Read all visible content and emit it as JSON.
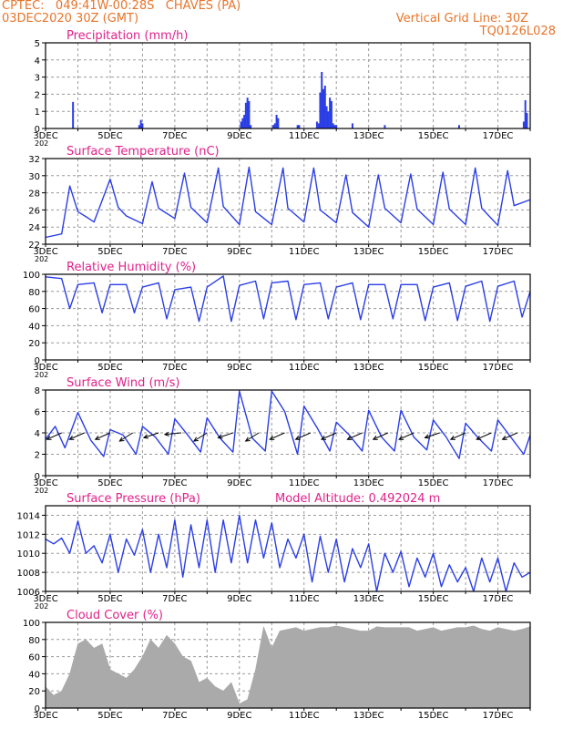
{
  "header": {
    "station_line": "CPTEC:   049:41W-00:28S   CHAVES (PA)",
    "run_line": "03DEC2020 30Z (GMT)",
    "grid_note": "Vertical Grid Line: 30Z",
    "product_code": "TQ0126L028"
  },
  "colors": {
    "header": "#e8742a",
    "title": "#e0218a",
    "line": "#2b3ee6",
    "bar": "#2b3ee6",
    "cloud": "#aaaaaa",
    "grid": "#9a9a9a"
  },
  "x_axis": {
    "days": 15,
    "tick_labels": [
      "3DEC",
      "5DEC",
      "7DEC",
      "9DEC",
      "11DEC",
      "13DEC",
      "15DEC",
      "17DEC"
    ],
    "year_fragment": "202"
  },
  "chart_data": [
    {
      "type": "bar",
      "title": "Precipitation (mm/h)",
      "ylim": [
        0,
        5
      ],
      "yticks": [
        "0",
        "1",
        "2",
        "3",
        "4",
        "5"
      ],
      "x": [
        0.85,
        2.9,
        2.95,
        3.0,
        6.05,
        6.1,
        6.15,
        6.2,
        6.25,
        6.3,
        6.35,
        7.05,
        7.1,
        7.15,
        7.2,
        7.8,
        7.85,
        8.4,
        8.45,
        8.5,
        8.55,
        8.6,
        8.65,
        8.7,
        8.75,
        8.8,
        8.85,
        8.9,
        8.95,
        9.0,
        9.5,
        10.5,
        12.8,
        14.8,
        14.85,
        14.9
      ],
      "values": [
        1.55,
        0.2,
        0.5,
        0.3,
        0.4,
        0.6,
        0.8,
        1.5,
        1.8,
        1.6,
        0.2,
        0.2,
        0.3,
        0.8,
        0.6,
        0.2,
        0.2,
        0.4,
        0.3,
        2.1,
        3.3,
        2.3,
        2.5,
        1.3,
        1.0,
        1.8,
        1.6,
        0.3,
        0.2,
        0.2,
        0.3,
        0.2,
        0.2,
        0.4,
        1.65,
        0.9
      ]
    },
    {
      "type": "line",
      "title": "Surface Temperature (nC)",
      "ylim": [
        22,
        32
      ],
      "yticks": [
        "22",
        "24",
        "26",
        "28",
        "30",
        "32"
      ],
      "series": [
        {
          "x": [
            0.0,
            0.5,
            0.75,
            1.0,
            1.3,
            1.5,
            2.0,
            2.25,
            2.5,
            3.0,
            3.3,
            3.5,
            4.0,
            4.3,
            4.5,
            5.0,
            5.35,
            5.5,
            6.0,
            6.3,
            6.5,
            7.0,
            7.35,
            7.5,
            8.0,
            8.3,
            8.5,
            9.0,
            9.3,
            9.5,
            10.0,
            10.3,
            10.5,
            11.0,
            11.3,
            11.5,
            12.0,
            12.3,
            12.5,
            13.0,
            13.3,
            13.5,
            14.0,
            14.3,
            14.5,
            15.0
          ],
          "values": [
            22.8,
            23.2,
            28.8,
            25.8,
            25.1,
            24.6,
            29.6,
            26.3,
            25.3,
            24.4,
            29.3,
            26.2,
            25.0,
            30.3,
            26.3,
            24.5,
            30.9,
            26.4,
            24.3,
            31.0,
            25.8,
            24.3,
            30.9,
            26.2,
            24.6,
            30.9,
            26.0,
            24.5,
            30.1,
            25.7,
            24.0,
            30.1,
            26.2,
            24.5,
            30.2,
            26.1,
            24.3,
            30.4,
            26.1,
            24.3,
            30.9,
            26.2,
            24.2,
            30.6,
            26.5,
            27.2
          ]
        }
      ]
    },
    {
      "type": "line",
      "title": "Relative Humidity (%)",
      "ylim": [
        0,
        100
      ],
      "yticks": [
        "0",
        "20",
        "40",
        "60",
        "80",
        "100"
      ],
      "series": [
        {
          "x": [
            0.0,
            0.5,
            0.75,
            1.0,
            1.5,
            1.75,
            2.0,
            2.5,
            2.75,
            3.0,
            3.5,
            3.75,
            4.0,
            4.5,
            4.75,
            5.0,
            5.5,
            5.75,
            6.0,
            6.5,
            6.75,
            7.0,
            7.5,
            7.75,
            8.0,
            8.5,
            8.75,
            9.0,
            9.5,
            9.75,
            10.0,
            10.5,
            10.75,
            11.0,
            11.5,
            11.75,
            12.0,
            12.5,
            12.75,
            13.0,
            13.5,
            13.75,
            14.0,
            14.5,
            14.75,
            15.0
          ],
          "values": [
            97,
            95,
            60,
            88,
            90,
            55,
            88,
            88,
            55,
            85,
            90,
            48,
            82,
            85,
            45,
            85,
            98,
            45,
            87,
            92,
            48,
            90,
            92,
            47,
            88,
            90,
            48,
            85,
            90,
            47,
            88,
            88,
            48,
            88,
            88,
            46,
            85,
            90,
            46,
            86,
            92,
            45,
            86,
            92,
            50,
            80
          ]
        }
      ]
    },
    {
      "type": "line",
      "title": "Surface Wind (m/s)",
      "ylim": [
        0,
        8
      ],
      "yticks": [
        "0",
        "2",
        "4",
        "6",
        "8"
      ],
      "series": [
        {
          "x": [
            0.0,
            0.3,
            0.6,
            1.0,
            1.4,
            1.8,
            2.0,
            2.4,
            2.8,
            3.0,
            3.4,
            3.8,
            4.0,
            4.4,
            4.8,
            5.0,
            5.4,
            5.8,
            6.0,
            6.4,
            6.8,
            7.0,
            7.4,
            7.8,
            8.0,
            8.4,
            8.8,
            9.0,
            9.4,
            9.8,
            10.0,
            10.4,
            10.8,
            11.0,
            11.4,
            11.8,
            12.0,
            12.4,
            12.8,
            13.0,
            13.4,
            13.8,
            14.0,
            14.4,
            14.8,
            15.0
          ],
          "values": [
            3.4,
            4.6,
            2.6,
            5.9,
            3.3,
            1.8,
            4.3,
            3.8,
            2.0,
            4.6,
            3.6,
            2.0,
            5.3,
            3.8,
            2.2,
            5.4,
            3.5,
            2.2,
            7.9,
            3.5,
            2.3,
            7.9,
            6.0,
            2.0,
            6.5,
            4.5,
            2.3,
            5.0,
            3.8,
            2.3,
            6.1,
            3.6,
            2.3,
            6.1,
            3.6,
            2.4,
            5.2,
            3.6,
            1.6,
            4.9,
            3.5,
            2.3,
            5.2,
            3.6,
            2.0,
            3.8
          ]
        }
      ],
      "arrows": [
        {
          "x": 0.5,
          "u": -0.9,
          "v": -0.4
        },
        {
          "x": 1.2,
          "u": -0.9,
          "v": -0.4
        },
        {
          "x": 2.0,
          "u": -0.9,
          "v": -0.4
        },
        {
          "x": 2.7,
          "u": -0.8,
          "v": -0.5
        },
        {
          "x": 3.5,
          "u": -0.9,
          "v": -0.3
        },
        {
          "x": 4.2,
          "u": -1.0,
          "v": -0.1
        },
        {
          "x": 5.0,
          "u": -0.8,
          "v": -0.5
        },
        {
          "x": 5.8,
          "u": -0.9,
          "v": -0.3
        },
        {
          "x": 6.6,
          "u": -0.8,
          "v": -0.5
        },
        {
          "x": 7.4,
          "u": -0.9,
          "v": -0.4
        },
        {
          "x": 8.2,
          "u": -0.9,
          "v": -0.4
        },
        {
          "x": 9.0,
          "u": -0.9,
          "v": -0.4
        },
        {
          "x": 9.8,
          "u": -0.9,
          "v": -0.4
        },
        {
          "x": 10.6,
          "u": -0.9,
          "v": -0.4
        },
        {
          "x": 11.4,
          "u": -0.9,
          "v": -0.4
        },
        {
          "x": 12.2,
          "u": -0.9,
          "v": -0.3
        },
        {
          "x": 13.0,
          "u": -0.9,
          "v": -0.4
        },
        {
          "x": 13.8,
          "u": -0.9,
          "v": -0.4
        },
        {
          "x": 14.6,
          "u": -0.9,
          "v": -0.4
        }
      ]
    },
    {
      "type": "line",
      "title": "Surface Pressure (hPa)",
      "annotation": "Model Altitude: 0.492024 m",
      "ylim": [
        1006,
        1015
      ],
      "yticks": [
        "1006",
        "1008",
        "1010",
        "1012",
        "1014"
      ],
      "series": [
        {
          "x": [
            0.0,
            0.25,
            0.5,
            0.75,
            1.0,
            1.25,
            1.5,
            1.75,
            2.0,
            2.25,
            2.5,
            2.75,
            3.0,
            3.25,
            3.5,
            3.75,
            4.0,
            4.25,
            4.5,
            4.75,
            5.0,
            5.25,
            5.5,
            5.75,
            6.0,
            6.25,
            6.5,
            6.75,
            7.0,
            7.25,
            7.5,
            7.75,
            8.0,
            8.25,
            8.5,
            8.75,
            9.0,
            9.25,
            9.5,
            9.75,
            10.0,
            10.25,
            10.5,
            10.75,
            11.0,
            11.25,
            11.5,
            11.75,
            12.0,
            12.25,
            12.5,
            12.75,
            13.0,
            13.25,
            13.5,
            13.75,
            14.0,
            14.25,
            14.5,
            14.75,
            15.0
          ],
          "values": [
            1011.5,
            1011.0,
            1011.6,
            1010.0,
            1013.4,
            1010.0,
            1010.8,
            1009.0,
            1012.0,
            1008.0,
            1011.5,
            1009.8,
            1012.5,
            1008.0,
            1012.0,
            1008.5,
            1013.5,
            1007.5,
            1013.0,
            1008.5,
            1013.5,
            1008.0,
            1013.5,
            1009.0,
            1014.0,
            1009.0,
            1013.5,
            1009.5,
            1013.2,
            1008.5,
            1011.5,
            1009.5,
            1012.0,
            1007.0,
            1011.8,
            1008.0,
            1011.5,
            1007.0,
            1010.5,
            1008.5,
            1011.0,
            1006.0,
            1010.0,
            1008.0,
            1010.2,
            1006.5,
            1009.5,
            1007.5,
            1010.0,
            1006.5,
            1008.8,
            1007.0,
            1008.5,
            1006.0,
            1009.5,
            1007.0,
            1009.5,
            1006.0,
            1009.0,
            1007.5,
            1008.0
          ]
        }
      ]
    },
    {
      "type": "area",
      "title": "Cloud Cover (%)",
      "ylim": [
        0,
        100
      ],
      "yticks": [
        "0",
        "20",
        "40",
        "60",
        "80",
        "100"
      ],
      "x": [
        0.0,
        0.25,
        0.5,
        0.75,
        1.0,
        1.25,
        1.5,
        1.75,
        2.0,
        2.25,
        2.5,
        2.75,
        3.0,
        3.25,
        3.5,
        3.75,
        4.0,
        4.25,
        4.5,
        4.75,
        5.0,
        5.25,
        5.5,
        5.75,
        6.0,
        6.25,
        6.5,
        6.75,
        7.0,
        7.25,
        7.5,
        7.75,
        8.0,
        8.25,
        8.5,
        8.75,
        9.0,
        9.25,
        9.5,
        9.75,
        10.0,
        10.25,
        10.5,
        10.75,
        11.0,
        11.25,
        11.5,
        11.75,
        12.0,
        12.25,
        12.5,
        12.75,
        13.0,
        13.25,
        13.5,
        13.75,
        14.0,
        14.25,
        14.5,
        14.75,
        15.0
      ],
      "values": [
        25,
        15,
        20,
        40,
        75,
        80,
        70,
        75,
        45,
        40,
        35,
        45,
        60,
        80,
        70,
        85,
        75,
        60,
        55,
        30,
        35,
        25,
        20,
        30,
        5,
        10,
        45,
        95,
        70,
        90,
        92,
        94,
        90,
        92,
        94,
        94,
        96,
        94,
        92,
        90,
        90,
        95,
        94,
        94,
        94,
        94,
        90,
        92,
        94,
        90,
        92,
        94,
        94,
        96,
        92,
        90,
        94,
        92,
        90,
        92,
        95
      ]
    }
  ]
}
